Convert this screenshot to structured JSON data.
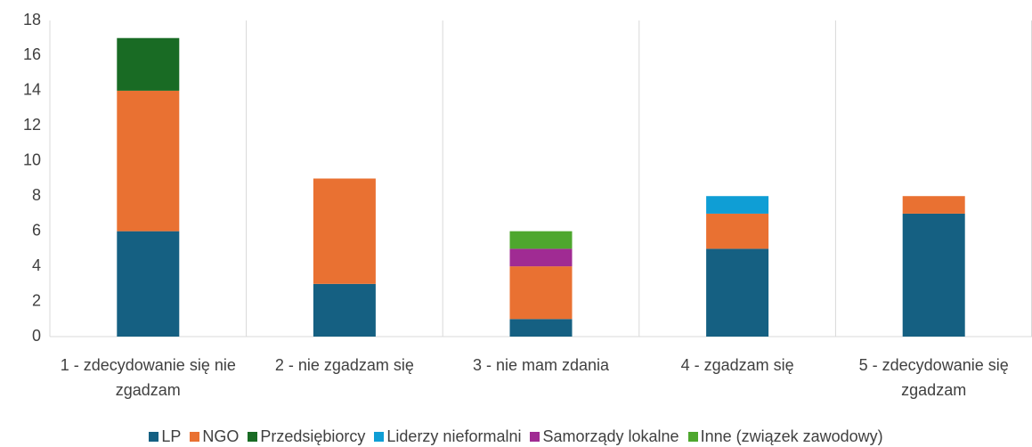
{
  "chart_data": {
    "type": "stacked_bar",
    "categories": [
      "1 - zdecydowanie się nie zgadzam",
      "2 - nie zgadzam się",
      "3 - nie mam zdania",
      "4 - zgadzam się",
      "5 - zdecydowanie się zgadzam"
    ],
    "series": [
      {
        "name": "LP",
        "color": "#156082",
        "values": [
          6,
          3,
          1,
          5,
          7
        ]
      },
      {
        "name": "NGO",
        "color": "#e97132",
        "values": [
          8,
          6,
          3,
          2,
          1
        ]
      },
      {
        "name": "Przedsiębiorcy",
        "color": "#196b24",
        "values": [
          3,
          0,
          0,
          0,
          0
        ]
      },
      {
        "name": "Liderzy nieformalni",
        "color": "#0f9ed5",
        "values": [
          0,
          0,
          0,
          1,
          0
        ]
      },
      {
        "name": "Samorządy lokalne",
        "color": "#a02b93",
        "values": [
          0,
          0,
          1,
          0,
          0
        ]
      },
      {
        "name": "Inne (związek zawodowy)",
        "color": "#4ea72e",
        "values": [
          0,
          0,
          1,
          0,
          0
        ]
      }
    ],
    "ylim": [
      0,
      18
    ],
    "yticks": [
      0,
      2,
      4,
      6,
      8,
      10,
      12,
      14,
      16,
      18
    ]
  }
}
